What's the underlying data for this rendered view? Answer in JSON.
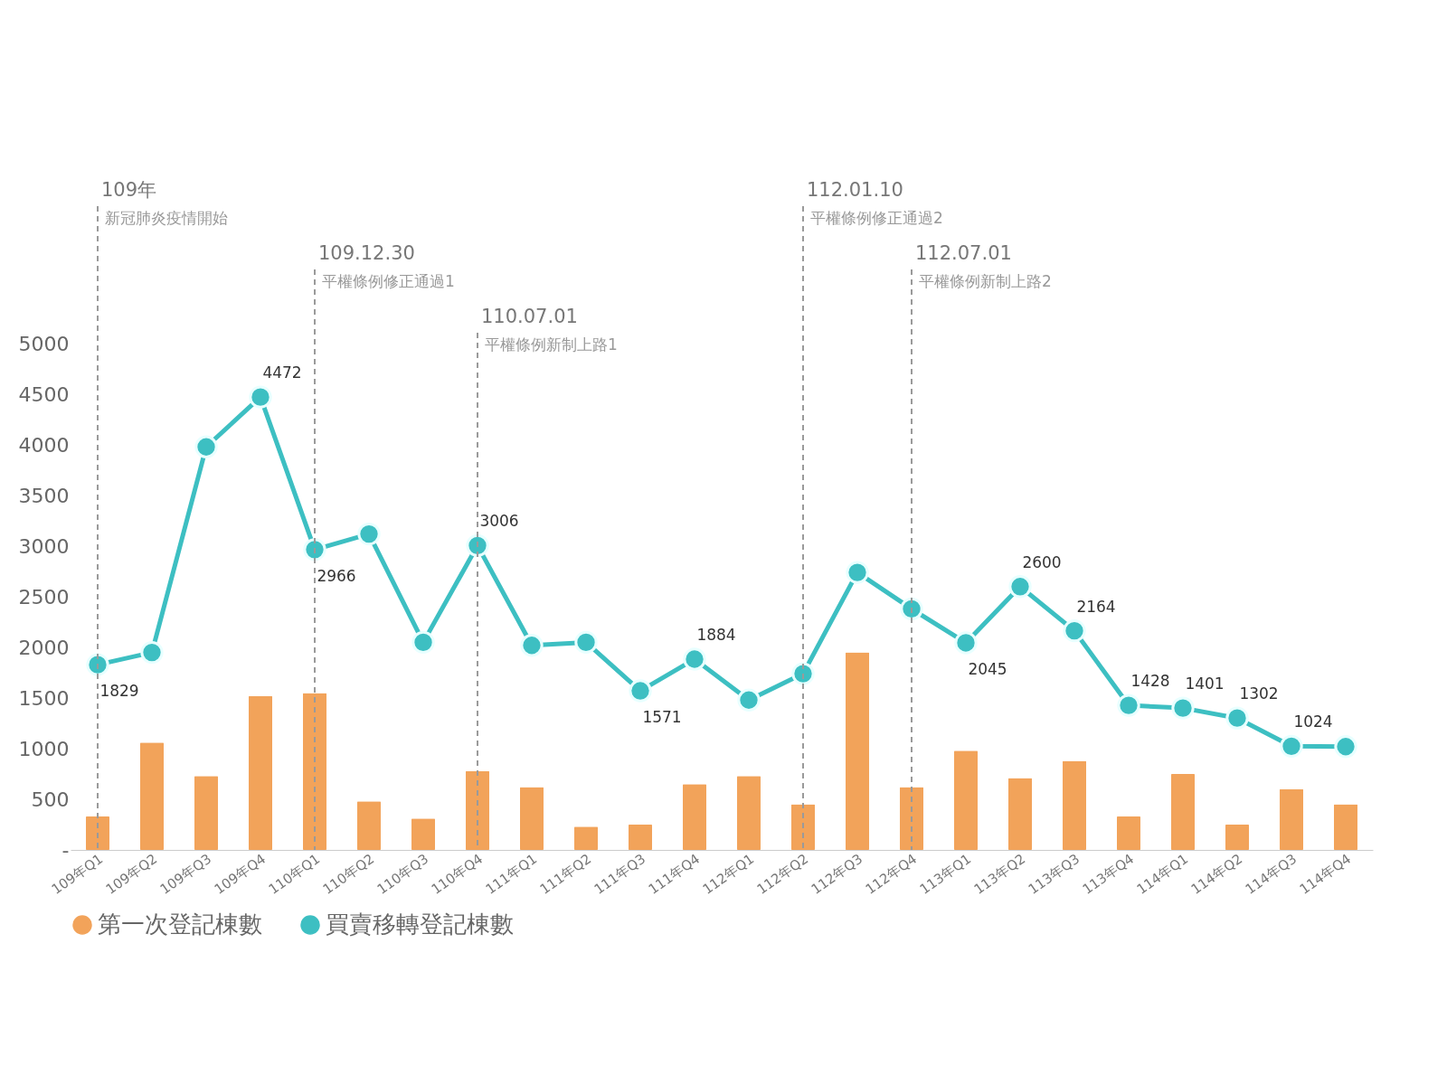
{
  "chart_data": {
    "type": "bar",
    "categories": [
      "109年Q1",
      "109年Q2",
      "109年Q3",
      "109年Q4",
      "110年Q1",
      "110年Q2",
      "110年Q3",
      "110年Q4",
      "111年Q1",
      "111年Q2",
      "111年Q3",
      "111年Q4",
      "112年Q1",
      "112年Q2",
      "112年Q3",
      "112年Q4",
      "113年Q1",
      "113年Q2",
      "113年Q3",
      "113年Q4",
      "114年Q1",
      "114年Q2",
      "114年Q3",
      "114年Q4"
    ],
    "series": [
      {
        "name": "第一次登記棟數",
        "color": "#f2a35a",
        "values": [
          330,
          1060,
          730,
          1520,
          1550,
          480,
          310,
          780,
          620,
          230,
          250,
          650,
          730,
          450,
          1950,
          620,
          980,
          710,
          880,
          330,
          750,
          250,
          600,
          450
        ]
      },
      {
        "name": "買賣移轉登記棟數",
        "type": "line",
        "color": "#3dbfc2",
        "values": [
          1829,
          1950,
          3980,
          4472,
          2966,
          3120,
          2050,
          3006,
          2020,
          2050,
          1571,
          1884,
          1480,
          1740,
          2740,
          2380,
          2045,
          2600,
          2164,
          1428,
          1401,
          1302,
          1024,
          1020
        ],
        "value_labels": [
          "1829",
          null,
          null,
          "4472",
          "2966",
          null,
          null,
          "3006",
          null,
          null,
          "1571",
          "1884",
          null,
          null,
          null,
          null,
          "2045",
          "2600",
          "2164",
          "1428",
          "1401",
          "1302",
          "1024",
          null
        ]
      }
    ],
    "ylim": [
      0,
      5000
    ],
    "yticks": [
      {
        "value": 0,
        "label": "-"
      },
      500,
      1000,
      1500,
      2000,
      2500,
      3000,
      3500,
      4000,
      4500,
      5000
    ],
    "ref_lines": [
      {
        "axis": "x",
        "value": "109年Q1",
        "label": "109年",
        "color": "#9a9a9a",
        "line_style": "dashed"
      },
      {
        "axis": "x",
        "value": "110年Q1",
        "label": "109.12.30",
        "color": "#9a9a9a",
        "line_style": "dashed"
      },
      {
        "axis": "x",
        "value": "110年Q4",
        "label": "110.07.01",
        "color": "#9a9a9a",
        "line_style": "dashed"
      },
      {
        "axis": "x",
        "value": "112年Q2",
        "label": "112.01.10",
        "color": "#9a9a9a",
        "line_style": "dashed"
      },
      {
        "axis": "x",
        "value": "112年Q4",
        "label": "112.07.01",
        "color": "#9a9a9a",
        "line_style": "dashed"
      }
    ],
    "annotations": [
      {
        "text": "新冠肺炎疫情開始",
        "x": "109年Q1"
      },
      {
        "text": "平權條例修正通過1",
        "x": "110年Q1"
      },
      {
        "text": "平權條例新制上路1",
        "x": "110年Q4"
      },
      {
        "text": "平權條例修正通過2",
        "x": "112年Q2"
      },
      {
        "text": "平權條例新制上路2",
        "x": "112年Q4"
      }
    ],
    "marker": "circle",
    "grid": false,
    "legend": "bottom"
  }
}
